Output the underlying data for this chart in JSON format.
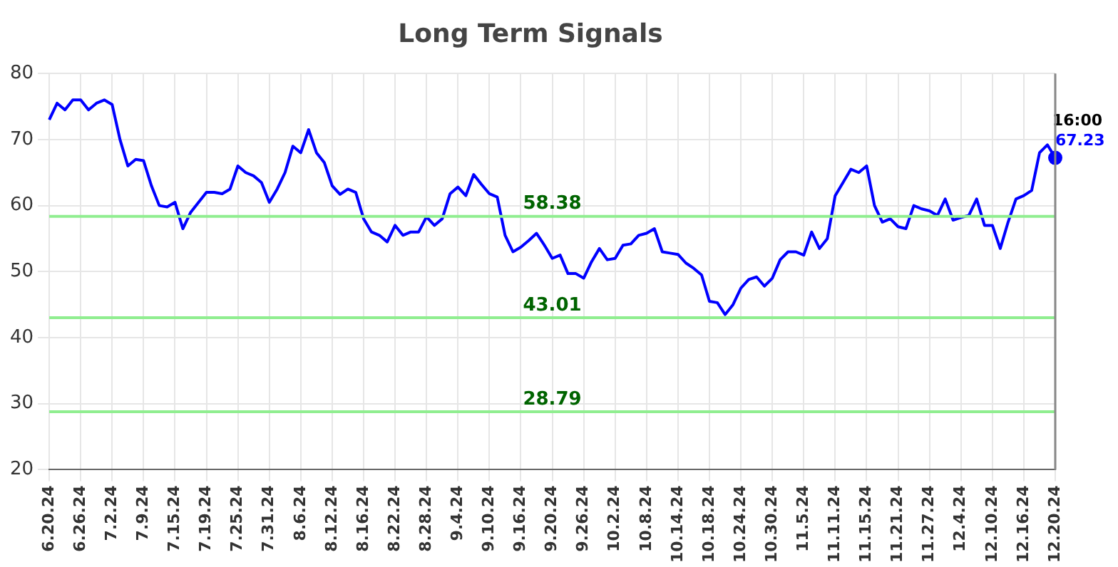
{
  "chart_data": {
    "type": "line",
    "title": "Long Term Signals",
    "categories": [
      "6.20.24",
      null,
      null,
      null,
      "6.26.24",
      null,
      null,
      null,
      "7.2.24",
      null,
      null,
      null,
      "7.9.24",
      null,
      null,
      null,
      "7.15.24",
      null,
      null,
      null,
      "7.19.24",
      null,
      null,
      null,
      "7.25.24",
      null,
      null,
      null,
      "7.31.24",
      null,
      null,
      null,
      "8.6.24",
      null,
      null,
      null,
      "8.12.24",
      null,
      null,
      null,
      "8.16.24",
      null,
      null,
      null,
      "8.22.24",
      null,
      null,
      null,
      "8.28.24",
      null,
      null,
      null,
      "9.4.24",
      null,
      null,
      null,
      "9.10.24",
      null,
      null,
      null,
      "9.16.24",
      null,
      null,
      null,
      "9.20.24",
      null,
      null,
      null,
      "9.26.24",
      null,
      null,
      null,
      "10.2.24",
      null,
      null,
      null,
      "10.8.24",
      null,
      null,
      null,
      "10.14.24",
      null,
      null,
      null,
      "10.18.24",
      null,
      null,
      null,
      "10.24.24",
      null,
      null,
      null,
      "10.30.24",
      null,
      null,
      null,
      "11.5.24",
      null,
      null,
      null,
      "11.11.24",
      null,
      null,
      null,
      "11.15.24",
      null,
      null,
      null,
      "11.21.24",
      null,
      null,
      null,
      "11.27.24",
      null,
      null,
      null,
      "12.4.24",
      null,
      null,
      null,
      "12.10.24",
      null,
      null,
      null,
      "12.16.24",
      null,
      null,
      null,
      "12.20.24"
    ],
    "series": [
      {
        "color": "#0000ff",
        "values": [
          73,
          75.5,
          74.5,
          76,
          76,
          74.5,
          75.5,
          76,
          75.3,
          70,
          66,
          67,
          66.8,
          63,
          60,
          59.8,
          60.5,
          56.5,
          59,
          60.5,
          62,
          62,
          61.8,
          62.5,
          66,
          65,
          64.5,
          63.5,
          60.5,
          62.5,
          65,
          69,
          68,
          71.5,
          68,
          66.5,
          63,
          61.7,
          62.5,
          62,
          58,
          56,
          55.5,
          54.5,
          57,
          55.5,
          56,
          56,
          58.3,
          57,
          58,
          61.8,
          62.8,
          61.5,
          64.7,
          63.2,
          61.8,
          61.3,
          55.5,
          53,
          53.7,
          54.7,
          55.8,
          54,
          52,
          52.5,
          49.7,
          49.7,
          49,
          51.5,
          53.5,
          51.8,
          52,
          54,
          54.2,
          55.5,
          55.8,
          56.5,
          53,
          52.8,
          52.6,
          51.3,
          50.5,
          49.5,
          45.5,
          45.3,
          43.5,
          45,
          47.5,
          48.8,
          49.2,
          47.8,
          49,
          51.8,
          53,
          53,
          52.5,
          56,
          53.5,
          55,
          61.5,
          63.5,
          65.5,
          65,
          66,
          60,
          57.5,
          58,
          56.8,
          56.5,
          60,
          59.5,
          59.2,
          58.5,
          61,
          57.8,
          58.2,
          58.5,
          61,
          57,
          57,
          53.5,
          57.5,
          61,
          61.5,
          62.3,
          68,
          69.2,
          67.23
        ]
      }
    ],
    "ylim": [
      20,
      80
    ],
    "yticks": [
      20,
      30,
      40,
      50,
      60,
      70,
      80
    ],
    "grid": true,
    "legend": false,
    "marker": "none",
    "ref_lines": [
      {
        "axis": "y",
        "value": 58.38,
        "label": "58.38",
        "color": "#90ee90"
      },
      {
        "axis": "y",
        "value": 43.01,
        "label": "43.01",
        "color": "#90ee90"
      },
      {
        "axis": "y",
        "value": 28.79,
        "label": "28.79",
        "color": "#90ee90"
      }
    ],
    "annotations": [
      "16:00",
      {
        "text": "67.23",
        "x": "12.20.24",
        "y": 67.23
      }
    ]
  }
}
